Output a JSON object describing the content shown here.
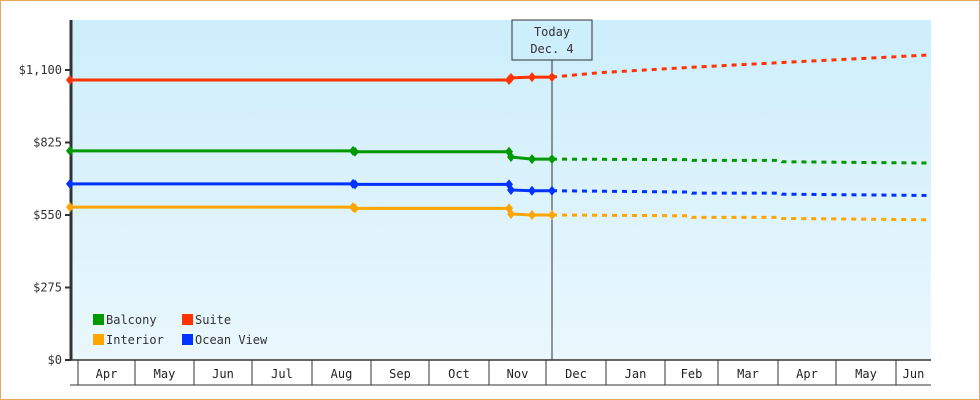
{
  "chart_data": {
    "type": "line",
    "title": "",
    "xlabel": "",
    "ylabel": "",
    "ylim": [
      0,
      1265
    ],
    "y_ticks": [
      {
        "label": "$0",
        "value": 0
      },
      {
        "label": "$275",
        "value": 275
      },
      {
        "label": "$550",
        "value": 550
      },
      {
        "label": "$825",
        "value": 825
      },
      {
        "label": "$1,100",
        "value": 1100
      }
    ],
    "x_ticks": [
      "Apr",
      "May",
      "Jun",
      "Jul",
      "Aug",
      "Sep",
      "Oct",
      "Nov",
      "Dec",
      "Jan",
      "Feb",
      "Mar",
      "Apr",
      "May",
      "Jun"
    ],
    "today_marker": {
      "line1": "Today",
      "line2": "Dec. 4"
    },
    "legend": [
      {
        "name": "Balcony",
        "color": "#009900"
      },
      {
        "name": "Suite",
        "color": "#ff3300"
      },
      {
        "name": "Interior",
        "color": "#ffa500"
      },
      {
        "name": "Ocean View",
        "color": "#0033ff"
      }
    ],
    "series": [
      {
        "name": "Suite",
        "color": "#ff3300",
        "history": [
          [
            70,
            1062
          ],
          [
            509,
            1062
          ],
          [
            511,
            1070
          ],
          [
            532,
            1073
          ],
          [
            552,
            1073
          ]
        ],
        "forecast": [
          [
            552,
            1073
          ],
          [
            600,
            1090
          ],
          [
            690,
            1110
          ],
          [
            780,
            1128
          ],
          [
            930,
            1157
          ]
        ]
      },
      {
        "name": "Balcony",
        "color": "#009900",
        "history": [
          [
            70,
            793
          ],
          [
            353,
            793
          ],
          [
            355,
            790
          ],
          [
            509,
            790
          ],
          [
            511,
            770
          ],
          [
            532,
            762
          ],
          [
            552,
            762
          ]
        ],
        "forecast": [
          [
            552,
            762
          ],
          [
            690,
            760
          ],
          [
            692,
            757
          ],
          [
            780,
            757
          ],
          [
            782,
            752
          ],
          [
            930,
            747
          ]
        ]
      },
      {
        "name": "Ocean View",
        "color": "#0033ff",
        "history": [
          [
            70,
            668
          ],
          [
            353,
            668
          ],
          [
            355,
            666
          ],
          [
            509,
            666
          ],
          [
            511,
            645
          ],
          [
            532,
            642
          ],
          [
            552,
            642
          ]
        ],
        "forecast": [
          [
            552,
            642
          ],
          [
            690,
            637
          ],
          [
            692,
            633
          ],
          [
            780,
            633
          ],
          [
            782,
            629
          ],
          [
            930,
            624
          ]
        ]
      },
      {
        "name": "Interior",
        "color": "#ffa500",
        "history": [
          [
            70,
            580
          ],
          [
            353,
            580
          ],
          [
            355,
            575
          ],
          [
            509,
            575
          ],
          [
            511,
            554
          ],
          [
            532,
            550
          ],
          [
            552,
            550
          ]
        ],
        "forecast": [
          [
            552,
            550
          ],
          [
            690,
            547
          ],
          [
            692,
            541
          ],
          [
            780,
            541
          ],
          [
            782,
            537
          ],
          [
            930,
            532
          ]
        ]
      }
    ]
  }
}
